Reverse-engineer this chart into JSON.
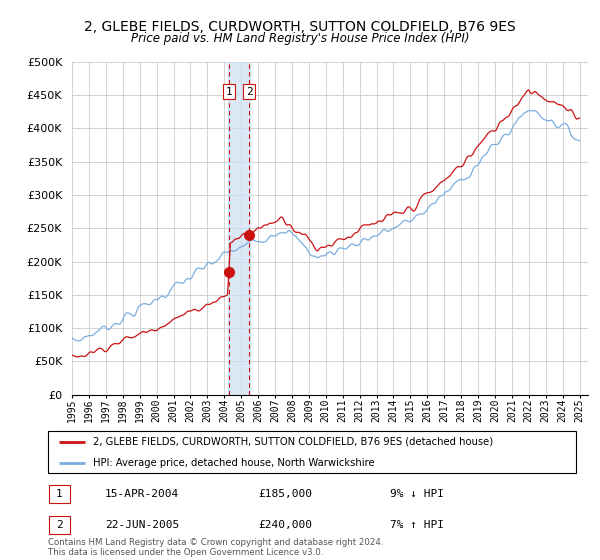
{
  "title": "2, GLEBE FIELDS, CURDWORTH, SUTTON COLDFIELD, B76 9ES",
  "subtitle": "Price paid vs. HM Land Registry's House Price Index (HPI)",
  "ylabel_ticks": [
    "£0",
    "£50K",
    "£100K",
    "£150K",
    "£200K",
    "£250K",
    "£300K",
    "£350K",
    "£400K",
    "£450K",
    "£500K"
  ],
  "ytick_values": [
    0,
    50000,
    100000,
    150000,
    200000,
    250000,
    300000,
    350000,
    400000,
    450000,
    500000
  ],
  "ylim": [
    0,
    500000
  ],
  "xlim_start": 1995.0,
  "xlim_end": 2025.5,
  "hpi_color": "#7aade0",
  "price_color": "#cc1111",
  "dashed_color": "#cc1111",
  "band_color": "#cce0f5",
  "transaction1_x": 2004.29,
  "transaction1_y": 185000,
  "transaction1_label": "1",
  "transaction2_x": 2005.47,
  "transaction2_y": 240000,
  "transaction2_label": "2",
  "legend_price_label": "2, GLEBE FIELDS, CURDWORTH, SUTTON COLDFIELD, B76 9ES (detached house)",
  "legend_hpi_label": "HPI: Average price, detached house, North Warwickshire",
  "table_rows": [
    {
      "num": "1",
      "date": "15-APR-2004",
      "price": "£185,000",
      "hpi": "9% ↓ HPI"
    },
    {
      "num": "2",
      "date": "22-JUN-2005",
      "price": "£240,000",
      "hpi": "7% ↑ HPI"
    }
  ],
  "footer": "Contains HM Land Registry data © Crown copyright and database right 2024.\nThis data is licensed under the Open Government Licence v3.0.",
  "background_color": "#ffffff",
  "grid_color": "#cccccc"
}
